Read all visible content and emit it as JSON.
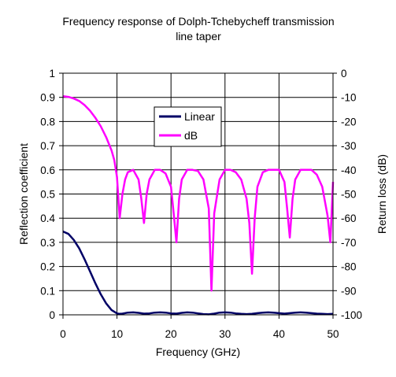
{
  "chart_data": {
    "type": "line",
    "title_lines": [
      "Frequency response of Dolph-Tchebycheff transmission",
      "line taper"
    ],
    "xlabel": "Frequency (GHz)",
    "ylabel_left": "Reflection coefficient",
    "ylabel_right": "Return loss (dB)",
    "xlim": [
      0,
      50
    ],
    "ylim_left": [
      0,
      1
    ],
    "ylim_right": [
      -100,
      0
    ],
    "x_ticks": [
      "0",
      "10",
      "20",
      "30",
      "40",
      "50"
    ],
    "y_left_ticks": [
      "0",
      "0.1",
      "0.2",
      "0.3",
      "0.4",
      "0.5",
      "0.6",
      "0.7",
      "0.8",
      "0.9",
      "1"
    ],
    "y_right_ticks": [
      "-100",
      "-90",
      "-80",
      "-70",
      "-60",
      "-50",
      "-40",
      "-30",
      "-20",
      "-10",
      "0"
    ],
    "grid": true,
    "legend_position": "inside-top-center",
    "series": [
      {
        "name": "Linear",
        "axis": "left",
        "color": "#000066",
        "x": [
          0,
          1,
          2,
          3,
          4,
          5,
          6,
          7,
          8,
          9,
          10,
          10.5,
          11,
          12,
          13,
          14,
          15,
          16,
          17,
          18,
          19,
          20,
          21,
          22,
          23,
          24,
          25,
          26,
          27,
          28,
          29,
          30,
          31,
          32,
          33,
          34,
          35,
          36,
          37,
          38,
          39,
          40,
          41,
          42,
          43,
          44,
          45,
          46,
          47,
          48,
          49,
          50
        ],
        "y": [
          0.345,
          0.335,
          0.31,
          0.275,
          0.23,
          0.18,
          0.13,
          0.085,
          0.047,
          0.02,
          0.006,
          0.004,
          0.005,
          0.009,
          0.01,
          0.008,
          0.005,
          0.006,
          0.009,
          0.01,
          0.009,
          0.006,
          0.005,
          0.008,
          0.01,
          0.009,
          0.006,
          0.003,
          0.002,
          0.005,
          0.009,
          0.01,
          0.009,
          0.006,
          0.004,
          0.003,
          0.004,
          0.007,
          0.009,
          0.01,
          0.009,
          0.007,
          0.005,
          0.007,
          0.009,
          0.01,
          0.009,
          0.007,
          0.005,
          0.004,
          0.003,
          0.004
        ]
      },
      {
        "name": "dB",
        "axis": "right",
        "color": "#ff00ff",
        "x": [
          0,
          1,
          2,
          3,
          4,
          5,
          6,
          7,
          8,
          9,
          9.5,
          10,
          10.5,
          11,
          11.5,
          12,
          13,
          14,
          14.5,
          15,
          15.5,
          16,
          17,
          18,
          19,
          20,
          20.5,
          21,
          21.5,
          22,
          23,
          24,
          25,
          26,
          27,
          27.5,
          28,
          29,
          30,
          31,
          32,
          33,
          34,
          34.5,
          35,
          35.5,
          36,
          37,
          38,
          39,
          40,
          41,
          41.5,
          42,
          42.5,
          43,
          44,
          45,
          46,
          47,
          48,
          49,
          49.5,
          50
        ],
        "y": [
          -9.5,
          -9.8,
          -10.5,
          -11.5,
          -13.2,
          -15.5,
          -18.5,
          -22,
          -26.5,
          -32,
          -36,
          -43,
          -60,
          -50,
          -44,
          -41,
          -40,
          -44,
          -52,
          -62,
          -50,
          -44,
          -40,
          -40,
          -41.5,
          -47,
          -58,
          -70,
          -52,
          -44,
          -40,
          -40,
          -40.5,
          -44,
          -56,
          -90,
          -58,
          -44,
          -40,
          -40,
          -41,
          -44,
          -52,
          -62,
          -83,
          -60,
          -47,
          -41,
          -40,
          -40,
          -40,
          -45,
          -56,
          -68,
          -52,
          -44,
          -40,
          -40,
          -40,
          -42,
          -47,
          -59,
          -70,
          -45
        ]
      }
    ]
  }
}
